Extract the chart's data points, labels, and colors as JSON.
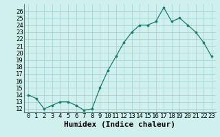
{
  "x": [
    0,
    1,
    2,
    3,
    4,
    5,
    6,
    7,
    8,
    9,
    10,
    11,
    12,
    13,
    14,
    15,
    16,
    17,
    18,
    19,
    20,
    21,
    22,
    23
  ],
  "y": [
    14.0,
    13.5,
    12.0,
    12.5,
    13.0,
    13.0,
    12.5,
    11.8,
    12.0,
    15.0,
    17.5,
    19.5,
    21.5,
    23.0,
    24.0,
    24.0,
    24.5,
    26.5,
    24.5,
    25.0,
    24.0,
    23.0,
    21.5,
    19.5
  ],
  "xlabel": "Humidex (Indice chaleur)",
  "xlim": [
    -0.5,
    23.5
  ],
  "ylim": [
    11.5,
    27.0
  ],
  "yticks": [
    12,
    13,
    14,
    15,
    16,
    17,
    18,
    19,
    20,
    21,
    22,
    23,
    24,
    25,
    26
  ],
  "xtick_labels": [
    "0",
    "1",
    "2",
    "3",
    "4",
    "5",
    "6",
    "7",
    "8",
    "9",
    "10",
    "11",
    "12",
    "13",
    "14",
    "15",
    "16",
    "17",
    "18",
    "19",
    "20",
    "21",
    "22",
    "23"
  ],
  "line_color": "#1a7a6e",
  "marker_color": "#1a7a6e",
  "bg_color": "#cff0ec",
  "grid_color": "#9ecece",
  "tick_fontsize": 6.5,
  "label_fontsize": 8
}
